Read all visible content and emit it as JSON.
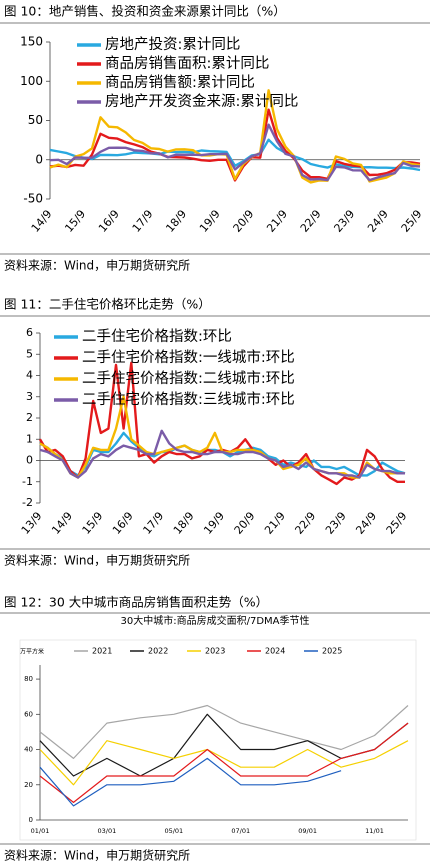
{
  "chart_data": [
    {
      "type": "line",
      "title": "图 10：地产销售、投资和资金来源累计同比（%）",
      "source": "资料来源：Wind，申万期货研究所",
      "categories": [
        "14/9",
        null,
        null,
        null,
        "15/9",
        null,
        null,
        null,
        "16/9",
        null,
        null,
        null,
        "17/9",
        null,
        null,
        null,
        "18/9",
        null,
        null,
        null,
        "19/9",
        null,
        null,
        null,
        "20/9",
        null,
        null,
        null,
        "21/9",
        null,
        null,
        null,
        "22/9",
        null,
        null,
        null,
        "23/9",
        null,
        null,
        null,
        "24/9",
        null,
        null,
        null,
        "25/9"
      ],
      "series": [
        {
          "name": "房地产投资:累计同比",
          "color": "#29a9e0",
          "values": [
            12.5,
            10.5,
            8.5,
            4.6,
            2.6,
            1,
            6.2,
            6.1,
            5.8,
            6.9,
            9.1,
            8.5,
            8.1,
            7,
            10.4,
            9.7,
            9.9,
            9.5,
            11.8,
            10.9,
            10.5,
            9.9,
            -7.7,
            -1.9,
            5.6,
            7,
            25.6,
            15,
            8.8,
            4.4,
            0.7,
            -5.4,
            -8,
            -10,
            -5.8,
            -7.9,
            -9.1,
            -9.6,
            -9.5,
            -10.1,
            -10.1,
            -10.6,
            -9.9,
            -11.2,
            -13
          ]
        },
        {
          "name": "商品房销售面积:累计同比",
          "color": "#e31a1c",
          "values": [
            -8.6,
            -7.6,
            -9.2,
            -6.5,
            -7.6,
            6.5,
            33.1,
            27.9,
            26.9,
            22.5,
            19.5,
            16.1,
            10.3,
            7.7,
            3.6,
            3.3,
            2.9,
            1.3,
            -0.6,
            -1.3,
            -0.1,
            -0.1,
            -26.3,
            -8.4,
            3.3,
            2.6,
            63.8,
            27.7,
            11.3,
            1.9,
            -13.8,
            -22.2,
            -22.2,
            -24.3,
            -1.8,
            -5.3,
            -7.5,
            -8.5,
            -19.4,
            -19,
            -17.1,
            -12.9,
            -3,
            -3.5,
            -5
          ]
        },
        {
          "name": "商品房销售额:累计同比",
          "color": "#f5b800",
          "values": [
            -9.9,
            -6.3,
            -9.3,
            3.9,
            7.2,
            14.4,
            54.1,
            42.1,
            41.3,
            34.8,
            25.1,
            21.5,
            14.6,
            13.7,
            10.4,
            13.2,
            13.3,
            12.2,
            5.6,
            5.6,
            7.1,
            6.5,
            -24.7,
            -5.4,
            3.7,
            8.7,
            88.5,
            38.9,
            16.6,
            4.8,
            -22.7,
            -28.9,
            -26.3,
            -26.7,
            4.1,
            1.1,
            -4.6,
            -6.5,
            -27.6,
            -25,
            -22.7,
            -17.1,
            -2.1,
            -5.5,
            -7
          ]
        },
        {
          "name": "房地产开发资金来源:累计同比",
          "color": "#7b5ca8",
          "values": [
            -0.6,
            -0.1,
            -5.6,
            2.9,
            2.5,
            2.6,
            10.1,
            15.2,
            15.3,
            15.2,
            12.1,
            11.3,
            8.2,
            8.2,
            3.1,
            6.4,
            6.3,
            6.4,
            5.9,
            7.1,
            7.1,
            7.6,
            -12.3,
            -3.6,
            4.3,
            8.1,
            44.7,
            23.5,
            7.5,
            4.2,
            -19.6,
            -25.3,
            -24.5,
            -25.9,
            -9,
            -9.8,
            -13.5,
            -13.6,
            -26,
            -22.5,
            -19.5,
            -17,
            -4.1,
            -8,
            -8.5
          ]
        }
      ],
      "ylim": [
        -50,
        150
      ],
      "yticks": [
        -50,
        0,
        50,
        100,
        150
      ],
      "legend": "upper left"
    },
    {
      "type": "line",
      "title": "图 11：二手住宅价格环比走势（%）",
      "source": "资料来源：Wind，申万期货研究所",
      "categories": [
        "13/9",
        null,
        null,
        null,
        "14/9",
        null,
        null,
        null,
        "15/9",
        null,
        null,
        null,
        "16/9",
        null,
        null,
        null,
        "17/9",
        null,
        null,
        null,
        "18/9",
        null,
        null,
        null,
        "19/9",
        null,
        null,
        null,
        "20/9",
        null,
        null,
        null,
        "21/9",
        null,
        null,
        null,
        "22/9",
        null,
        null,
        null,
        "23/9",
        null,
        null,
        null,
        "24/9",
        null,
        null,
        null,
        "25/9"
      ],
      "series": [
        {
          "name": "二手住宅价格指数:环比",
          "color": "#29a9e0",
          "values": [
            0.8,
            0.6,
            0.3,
            0.1,
            -0.5,
            -0.7,
            -0.3,
            0.5,
            0.4,
            0.4,
            0.8,
            1.3,
            0.9,
            0.6,
            0.3,
            0.2,
            0.4,
            0.4,
            0.6,
            0.7,
            0.5,
            0.4,
            0.5,
            0.5,
            0.4,
            0.2,
            0.4,
            0.5,
            0.6,
            0.5,
            0.2,
            0.1,
            -0.2,
            -0.1,
            -0.2,
            -0.3,
            0,
            -0.3,
            -0.3,
            -0.4,
            -0.3,
            -0.5,
            -0.7,
            -0.7,
            -0.5,
            -0.1,
            -0.3,
            -0.5,
            -0.6
          ]
        },
        {
          "name": "二手住宅价格指数:一线城市:环比",
          "color": "#e31a1c",
          "values": [
            1.0,
            0.4,
            0.5,
            0.2,
            -0.5,
            -0.8,
            0.1,
            2.8,
            1.3,
            1.5,
            4.5,
            1.5,
            4.6,
            0.2,
            0.3,
            -0.1,
            0.2,
            0.4,
            0.3,
            0.3,
            0.1,
            0.2,
            0.5,
            0.4,
            0.5,
            0.4,
            0.6,
            1.0,
            0.5,
            0.4,
            0.1,
            -0.2,
            0,
            -0.3,
            -0.1,
            0.3,
            -0.4,
            -0.7,
            -0.9,
            -1.1,
            -0.8,
            -0.9,
            -0.7,
            0.5,
            0.2,
            -0.4,
            -0.8,
            -1.0,
            -1.0
          ]
        },
        {
          "name": "二手住宅价格指数:二线城市:环比",
          "color": "#f5b800",
          "values": [
            0.8,
            0.6,
            0.3,
            0,
            -0.6,
            -0.8,
            -0.2,
            0.6,
            0.5,
            0.5,
            1.5,
            3.0,
            1.0,
            0.7,
            0.4,
            0.3,
            0.4,
            0.5,
            0.6,
            0.7,
            0.5,
            0.4,
            0.6,
            1.3,
            0.4,
            0.4,
            0.5,
            0.5,
            0.5,
            0.4,
            0.1,
            0,
            -0.4,
            -0.3,
            -0.2,
            0.1,
            -0.4,
            -0.5,
            -0.6,
            -0.6,
            -0.6,
            -0.8,
            -0.8,
            -0.1,
            -0.4,
            -0.5,
            -0.6,
            -0.6,
            -0.6
          ]
        },
        {
          "name": "二手住宅价格指数:三线城市:环比",
          "color": "#7b5ca8",
          "values": [
            0.5,
            0.4,
            0.2,
            0,
            -0.6,
            -0.8,
            -0.5,
            0.1,
            0.3,
            0.2,
            0.5,
            0.7,
            0.6,
            0.5,
            0.3,
            0.3,
            1.4,
            0.8,
            0.5,
            0.4,
            0.4,
            0.3,
            0.3,
            0.4,
            0.4,
            0.3,
            0.3,
            0.4,
            0.4,
            0.3,
            0.1,
            0,
            -0.3,
            -0.2,
            -0.4,
            -0.1,
            -0.4,
            -0.5,
            -0.6,
            -0.6,
            -0.7,
            -0.7,
            -0.8,
            -0.2,
            -0.4,
            -0.5,
            -0.5,
            -0.6,
            -0.6
          ]
        }
      ],
      "ylim": [
        -2,
        6
      ],
      "yticks": [
        -2,
        -1,
        0,
        1,
        2,
        3,
        4,
        5,
        6
      ],
      "legend": "upper left"
    },
    {
      "type": "line",
      "title": "图 12：30 大中城市商品房销售面积走势（%）",
      "subtitle": "30大中城市:商品房成交面积/7DMA季节性",
      "ylabel": "万平方米",
      "source": "资料来源：Wind，申万期货研究所",
      "categories": [
        "01/01",
        null,
        "03/01",
        null,
        "05/01",
        null,
        "07/01",
        null,
        "09/01",
        null,
        "11/01",
        null
      ],
      "series": [
        {
          "name": "2021",
          "color": "#a6a6a6",
          "values": [
            50,
            35,
            55,
            58,
            60,
            65,
            55,
            50,
            45,
            40,
            48,
            65
          ]
        },
        {
          "name": "2022",
          "color": "#1a1a1a",
          "values": [
            45,
            25,
            35,
            25,
            35,
            60,
            40,
            40,
            45,
            35,
            40,
            55
          ]
        },
        {
          "name": "2023",
          "color": "#f5d000",
          "values": [
            40,
            20,
            45,
            40,
            35,
            40,
            30,
            30,
            40,
            30,
            35,
            45
          ]
        },
        {
          "name": "2024",
          "color": "#e31a1c",
          "values": [
            25,
            10,
            25,
            25,
            25,
            40,
            25,
            25,
            25,
            35,
            40,
            55
          ]
        },
        {
          "name": "2025",
          "color": "#1f5fbf",
          "values": [
            30,
            8,
            20,
            20,
            22,
            35,
            20,
            20,
            22,
            28,
            null,
            null
          ]
        }
      ],
      "ylim": [
        0,
        88
      ],
      "yticks": [
        0,
        20,
        40,
        60,
        80
      ],
      "legend": "top"
    }
  ]
}
